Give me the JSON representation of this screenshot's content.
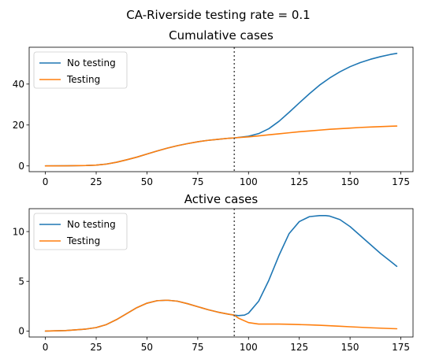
{
  "suptitle": "CA-Riverside testing rate = 0.1",
  "colors": {
    "no_testing": "#1f77b4",
    "testing": "#ff7f0e",
    "marker_line": "#555555"
  },
  "chart_data": [
    {
      "type": "line",
      "title": "Cumulative cases",
      "xlabel": "",
      "ylabel": "",
      "xlim": [
        -8,
        181
      ],
      "ylim": [
        -2.8,
        58
      ],
      "xticks": [
        0,
        25,
        50,
        75,
        100,
        125,
        150,
        175
      ],
      "yticks": [
        0,
        20,
        40
      ],
      "grid": false,
      "legend_position": "top-left",
      "vertical_marker": {
        "x": 93,
        "style": "dotted"
      },
      "series": [
        {
          "name": "No testing",
          "color_key": "no_testing",
          "x": [
            0,
            10,
            20,
            25,
            30,
            35,
            40,
            45,
            50,
            55,
            60,
            65,
            70,
            75,
            80,
            85,
            90,
            93,
            95,
            100,
            105,
            110,
            115,
            120,
            125,
            130,
            135,
            140,
            145,
            150,
            155,
            160,
            165,
            170,
            173
          ],
          "y": [
            0,
            0.05,
            0.2,
            0.4,
            0.9,
            1.8,
            3.0,
            4.3,
            5.8,
            7.3,
            8.7,
            9.9,
            10.9,
            11.8,
            12.5,
            13.0,
            13.5,
            13.7,
            13.9,
            14.5,
            15.8,
            18.2,
            21.8,
            26.2,
            30.8,
            35.3,
            39.5,
            43.0,
            46.0,
            48.5,
            50.5,
            52.1,
            53.4,
            54.5,
            55.0
          ]
        },
        {
          "name": "Testing",
          "color_key": "testing",
          "x": [
            0,
            10,
            20,
            25,
            30,
            35,
            40,
            45,
            50,
            55,
            60,
            65,
            70,
            75,
            80,
            85,
            90,
            93,
            95,
            100,
            105,
            110,
            115,
            120,
            125,
            130,
            135,
            140,
            145,
            150,
            155,
            160,
            165,
            170,
            173
          ],
          "y": [
            0,
            0.05,
            0.2,
            0.4,
            0.9,
            1.8,
            3.0,
            4.3,
            5.8,
            7.3,
            8.7,
            9.9,
            10.9,
            11.8,
            12.5,
            13.0,
            13.5,
            13.7,
            13.85,
            14.2,
            14.7,
            15.2,
            15.7,
            16.2,
            16.7,
            17.1,
            17.5,
            17.9,
            18.2,
            18.5,
            18.8,
            19.0,
            19.2,
            19.4,
            19.5
          ]
        }
      ]
    },
    {
      "type": "line",
      "title": "Active cases",
      "xlabel": "",
      "ylabel": "",
      "xlim": [
        -8,
        181
      ],
      "ylim": [
        -0.6,
        12.3
      ],
      "xticks": [
        0,
        25,
        50,
        75,
        100,
        125,
        150,
        175
      ],
      "yticks": [
        0,
        5,
        10
      ],
      "grid": false,
      "legend_position": "top-left",
      "vertical_marker": {
        "x": 93,
        "style": "dotted"
      },
      "series": [
        {
          "name": "No testing",
          "color_key": "no_testing",
          "x": [
            0,
            10,
            20,
            25,
            30,
            35,
            40,
            45,
            50,
            55,
            60,
            65,
            70,
            75,
            80,
            85,
            90,
            93,
            95,
            98,
            100,
            105,
            110,
            115,
            120,
            125,
            130,
            135,
            138,
            140,
            145,
            150,
            155,
            160,
            165,
            170,
            173
          ],
          "y": [
            0,
            0.05,
            0.2,
            0.35,
            0.65,
            1.15,
            1.75,
            2.35,
            2.8,
            3.05,
            3.1,
            3.0,
            2.75,
            2.45,
            2.15,
            1.9,
            1.7,
            1.6,
            1.55,
            1.6,
            1.8,
            3.0,
            5.1,
            7.6,
            9.8,
            11.0,
            11.5,
            11.6,
            11.6,
            11.55,
            11.2,
            10.5,
            9.6,
            8.7,
            7.8,
            7.0,
            6.5
          ]
        },
        {
          "name": "Testing",
          "color_key": "testing",
          "x": [
            0,
            10,
            20,
            25,
            30,
            35,
            40,
            45,
            50,
            55,
            60,
            65,
            70,
            75,
            80,
            85,
            90,
            93,
            95,
            100,
            105,
            110,
            115,
            120,
            125,
            130,
            135,
            140,
            145,
            150,
            155,
            160,
            165,
            170,
            173
          ],
          "y": [
            0,
            0.05,
            0.2,
            0.35,
            0.65,
            1.15,
            1.75,
            2.35,
            2.8,
            3.05,
            3.1,
            3.0,
            2.75,
            2.45,
            2.15,
            1.9,
            1.7,
            1.6,
            1.3,
            0.85,
            0.7,
            0.7,
            0.7,
            0.68,
            0.65,
            0.62,
            0.58,
            0.53,
            0.48,
            0.43,
            0.38,
            0.33,
            0.29,
            0.25,
            0.23
          ]
        }
      ]
    }
  ]
}
